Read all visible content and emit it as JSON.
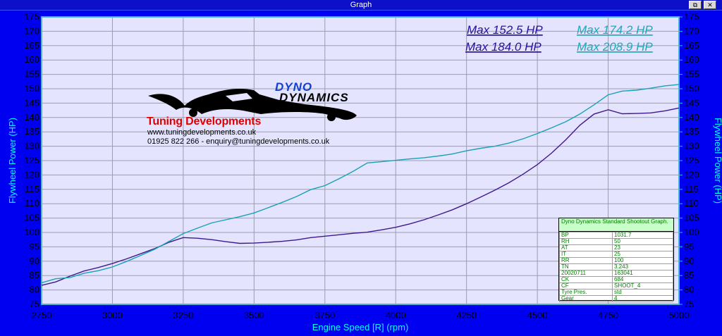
{
  "window": {
    "title": "Graph",
    "restore_icon": "restore-icon",
    "close_icon": "close-icon"
  },
  "colors": {
    "plot_background": "#e4e4ff",
    "frame": "#0000f0",
    "series_a": "#40188c",
    "series_b": "#1aa0b4",
    "tick_text": "#000000",
    "axis_title": "#00ffff"
  },
  "max_labels": [
    {
      "text": "Max 152.5 HP",
      "color": "#2a10a0"
    },
    {
      "text": "Max 174.2 HP",
      "color": "#20a8b8"
    },
    {
      "text": "Max 184.0 HP",
      "color": "#2a10a0"
    },
    {
      "text": "Max 208.9 HP",
      "color": "#20a8b8"
    }
  ],
  "logo": {
    "brand_line1": "DYNO",
    "brand_line2": "DYNAMICS",
    "company": "Tuning Developments",
    "website": "www.tuningdevelopments.co.uk",
    "contact": "01925 822 266 - enquiry@tuningdevelopments.co.uk"
  },
  "info_sheet": {
    "heading": "Dyno Dynamics Standard Shootout Graph.",
    "rows": [
      [
        "BP",
        "1031.7"
      ],
      [
        "RH",
        "50"
      ],
      [
        "AT",
        "23"
      ],
      [
        "IT",
        "25"
      ],
      [
        "RR",
        "100"
      ],
      [
        "TN",
        "3.243"
      ],
      [
        "20020711",
        "163041"
      ],
      [
        "CK",
        "684"
      ],
      [
        "CF",
        "SHOOT_4"
      ],
      [
        "Tyre Pres.",
        "std"
      ],
      [
        "Gear",
        "4"
      ]
    ]
  },
  "chart_data": {
    "type": "line",
    "title": "",
    "xlabel": "Engine Speed [R] (rpm)",
    "ylabel": "Flywheel Power (HP)",
    "ylabel_right": "Flywheel Power (HP)",
    "xlim": [
      2750,
      5000
    ],
    "ylim": [
      75,
      175
    ],
    "x_ticks": [
      2750,
      3000,
      3250,
      3500,
      3750,
      4000,
      4250,
      4500,
      4750,
      5000
    ],
    "y_ticks": [
      75,
      80,
      85,
      90,
      95,
      100,
      105,
      110,
      115,
      120,
      125,
      130,
      135,
      140,
      145,
      150,
      155,
      160,
      165,
      170,
      175
    ],
    "grid": true,
    "series": [
      {
        "color": "#40188c",
        "x": [
          2750,
          2800,
          2850,
          2900,
          2950,
          3000,
          3050,
          3100,
          3150,
          3200,
          3250,
          3300,
          3350,
          3400,
          3450,
          3500,
          3550,
          3600,
          3650,
          3700,
          3750,
          3800,
          3850,
          3900,
          3950,
          4000,
          4050,
          4100,
          4150,
          4200,
          4250,
          4300,
          4350,
          4400,
          4450,
          4500,
          4550,
          4600,
          4650,
          4700,
          4750,
          4800,
          4850,
          4900,
          4950,
          5000
        ],
        "y": [
          81.6,
          82.8,
          84.8,
          86.6,
          87.8,
          89.2,
          90.8,
          92.6,
          94.4,
          96.6,
          98.2,
          98.0,
          97.5,
          96.8,
          96.2,
          96.3,
          96.6,
          96.9,
          97.4,
          98.2,
          98.7,
          99.2,
          99.7,
          100.1,
          100.9,
          101.8,
          103.0,
          104.4,
          106.1,
          107.9,
          110.0,
          112.3,
          114.7,
          117.3,
          120.3,
          123.6,
          127.6,
          132.2,
          137.3,
          141.2,
          142.7,
          141.3,
          141.4,
          141.6,
          142.3,
          143.3
        ]
      },
      {
        "color": "#1aa0b4",
        "x": [
          2750,
          2800,
          2850,
          2900,
          2950,
          3000,
          3050,
          3100,
          3150,
          3200,
          3250,
          3300,
          3350,
          3400,
          3450,
          3500,
          3550,
          3600,
          3650,
          3700,
          3750,
          3800,
          3850,
          3900,
          3950,
          4000,
          4050,
          4100,
          4150,
          4200,
          4250,
          4300,
          4350,
          4400,
          4450,
          4500,
          4550,
          4600,
          4650,
          4700,
          4750,
          4800,
          4850,
          4900,
          4950,
          5000
        ],
        "y": [
          82.5,
          83.9,
          84.3,
          85.8,
          86.7,
          88.0,
          89.9,
          92.0,
          94.2,
          96.9,
          99.6,
          101.5,
          103.3,
          104.4,
          105.5,
          106.8,
          108.6,
          110.5,
          112.5,
          114.9,
          116.3,
          118.7,
          121.3,
          124.2,
          124.6,
          125.1,
          125.6,
          126.0,
          126.6,
          127.3,
          128.4,
          129.3,
          130.0,
          131.1,
          132.6,
          134.4,
          136.4,
          138.5,
          141.2,
          144.4,
          147.9,
          149.2,
          149.5,
          150.2,
          151.0,
          151.5
        ]
      }
    ],
    "max_values_hp": [
      152.5,
      174.2,
      184.0,
      208.9
    ]
  }
}
